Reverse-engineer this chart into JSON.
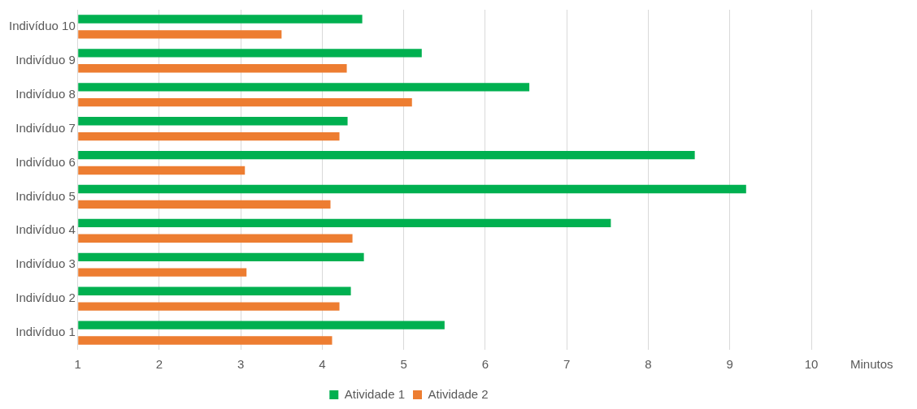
{
  "chart_data": {
    "type": "bar",
    "orientation": "horizontal",
    "xlabel": "Minutos",
    "categories": [
      "Indivíduo 10",
      "Indivíduo 9",
      "Indivíduo 8",
      "Indivíduo 7",
      "Indivíduo 6",
      "Indivíduo 5",
      "Indivíduo 4",
      "Indivíduo 3",
      "Indivíduo 2",
      "Indivíduo 1"
    ],
    "series": [
      {
        "name": "Atividade 1",
        "color": "#00b050",
        "values": [
          4.49,
          5.22,
          6.54,
          4.31,
          8.57,
          9.2,
          7.54,
          4.51,
          4.35,
          5.5
        ]
      },
      {
        "name": "Atividade 2",
        "color": "#ed7d31",
        "values": [
          3.5,
          4.3,
          5.1,
          4.21,
          3.05,
          4.1,
          4.37,
          3.07,
          4.21,
          4.12
        ]
      }
    ],
    "xlim": [
      1,
      10
    ],
    "xticks": [
      1,
      2,
      3,
      4,
      5,
      6,
      7,
      8,
      9,
      10
    ],
    "grid": "x",
    "legend": "bottom"
  }
}
